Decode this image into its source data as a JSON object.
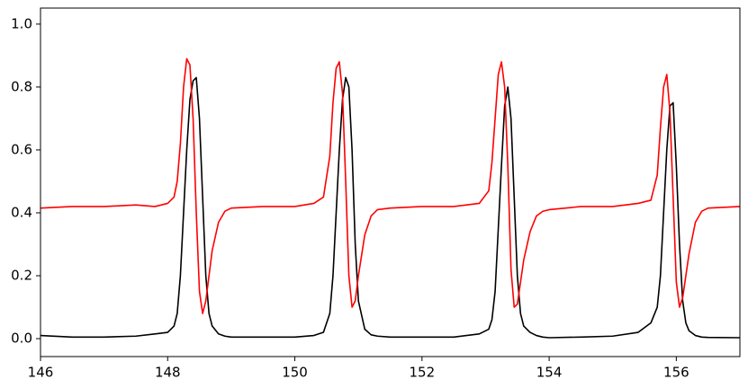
{
  "chart_data": {
    "type": "line",
    "x": [
      146,
      146.5,
      147,
      147.5,
      147.8,
      148.0,
      148.1,
      148.15,
      148.2,
      148.25,
      148.3,
      148.35,
      148.4,
      148.45,
      148.5,
      148.55,
      148.6,
      148.65,
      148.7,
      148.8,
      148.9,
      149.0,
      149.5,
      150.0,
      150.3,
      150.45,
      150.55,
      150.6,
      150.65,
      150.7,
      150.75,
      150.8,
      150.85,
      150.9,
      150.95,
      151.0,
      151.1,
      151.2,
      151.3,
      151.5,
      152.0,
      152.5,
      152.9,
      153.05,
      153.1,
      153.15,
      153.2,
      153.25,
      153.3,
      153.35,
      153.4,
      153.45,
      153.5,
      153.55,
      153.6,
      153.7,
      153.8,
      153.9,
      154.0,
      154.5,
      155.0,
      155.4,
      155.6,
      155.7,
      155.75,
      155.8,
      155.85,
      155.9,
      155.95,
      156.0,
      156.05,
      156.1,
      156.15,
      156.2,
      156.3,
      156.4,
      156.5,
      157.0
    ],
    "series": [
      {
        "color": "#000000",
        "values": [
          0.01,
          0.005,
          0.005,
          0.008,
          0.015,
          0.02,
          0.04,
          0.08,
          0.2,
          0.4,
          0.6,
          0.76,
          0.82,
          0.83,
          0.7,
          0.45,
          0.2,
          0.08,
          0.04,
          0.015,
          0.008,
          0.005,
          0.005,
          0.005,
          0.01,
          0.02,
          0.08,
          0.2,
          0.4,
          0.6,
          0.76,
          0.83,
          0.8,
          0.6,
          0.3,
          0.12,
          0.03,
          0.012,
          0.008,
          0.005,
          0.005,
          0.005,
          0.015,
          0.03,
          0.06,
          0.15,
          0.35,
          0.55,
          0.74,
          0.8,
          0.7,
          0.45,
          0.2,
          0.08,
          0.04,
          0.02,
          0.01,
          0.005,
          0.003,
          0.005,
          0.008,
          0.02,
          0.05,
          0.1,
          0.2,
          0.4,
          0.6,
          0.74,
          0.75,
          0.55,
          0.3,
          0.12,
          0.05,
          0.025,
          0.01,
          0.005,
          0.004,
          0.003
        ]
      },
      {
        "color": "#ff0000",
        "values": [
          0.415,
          0.42,
          0.42,
          0.425,
          0.42,
          0.43,
          0.45,
          0.5,
          0.62,
          0.8,
          0.89,
          0.87,
          0.7,
          0.4,
          0.15,
          0.08,
          0.12,
          0.2,
          0.28,
          0.37,
          0.405,
          0.415,
          0.42,
          0.42,
          0.43,
          0.45,
          0.58,
          0.75,
          0.86,
          0.88,
          0.78,
          0.5,
          0.2,
          0.1,
          0.12,
          0.2,
          0.33,
          0.39,
          0.41,
          0.415,
          0.42,
          0.42,
          0.43,
          0.47,
          0.56,
          0.7,
          0.84,
          0.88,
          0.8,
          0.55,
          0.22,
          0.1,
          0.11,
          0.18,
          0.25,
          0.34,
          0.39,
          0.405,
          0.41,
          0.42,
          0.42,
          0.43,
          0.44,
          0.52,
          0.67,
          0.8,
          0.84,
          0.72,
          0.45,
          0.18,
          0.1,
          0.13,
          0.2,
          0.27,
          0.37,
          0.405,
          0.415,
          0.42
        ]
      }
    ],
    "xlim": [
      146,
      157
    ],
    "ylim": [
      -0.057,
      1.051
    ],
    "xticks": [
      146,
      148,
      150,
      152,
      154,
      156
    ],
    "yticks": [
      {
        "value": 0,
        "label": "0.0"
      },
      0.2,
      0.4,
      0.6,
      0.8,
      {
        "value": 1,
        "label": "1.0"
      }
    ],
    "grid": false
  }
}
